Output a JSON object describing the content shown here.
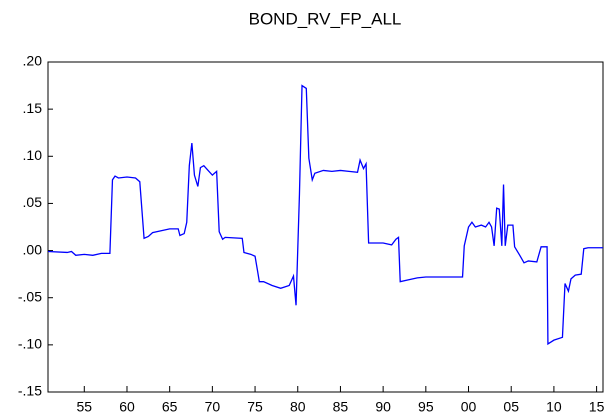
{
  "chart_data": {
    "type": "line",
    "title": "BOND_RV_FP_ALL",
    "x": [
      1950.75,
      1953,
      1953.5,
      1954,
      1955,
      1956,
      1957,
      1958,
      1958.3,
      1958.6,
      1959,
      1960,
      1961,
      1961.5,
      1962,
      1962.5,
      1963,
      1964,
      1965,
      1966,
      1966.2,
      1966.7,
      1967,
      1967.3,
      1967.6,
      1967.9,
      1968.3,
      1968.6,
      1969,
      1969.5,
      1970,
      1970.5,
      1970.8,
      1971.2,
      1971.5,
      1973.5,
      1973.7,
      1974.5,
      1975,
      1975.3,
      1975.5,
      1976,
      1977,
      1978,
      1979,
      1979.5,
      1979.8,
      1980.2,
      1980.5,
      1981,
      1981.3,
      1981.7,
      1982,
      1983,
      1984,
      1985,
      1986,
      1987,
      1987.3,
      1987.7,
      1988,
      1988.3,
      1989,
      1990,
      1991,
      1991.5,
      1991.8,
      1992,
      1993,
      1994,
      1995,
      1997,
      1998,
      1999.3,
      1999.5,
      2000,
      2000.4,
      2000.8,
      2001.5,
      2002,
      2002.4,
      2002.7,
      2003,
      2003.3,
      2003.6,
      2003.9,
      2004.1,
      2004.3,
      2004.6,
      2005.2,
      2005.4,
      2006,
      2006.5,
      2007,
      2008,
      2008.5,
      2009.2,
      2009.3,
      2010,
      2011,
      2011.3,
      2011.7,
      2012,
      2012.5,
      2013.2,
      2013.5,
      2014,
      2015.75
    ],
    "series": [
      {
        "name": "BOND_RV_FP_ALL",
        "color": "#0000ff",
        "values": [
          -0.001,
          -0.002,
          -0.001,
          -0.005,
          -0.004,
          -0.005,
          -0.003,
          -0.003,
          0.075,
          0.079,
          0.077,
          0.078,
          0.077,
          0.073,
          0.013,
          0.015,
          0.019,
          0.021,
          0.023,
          0.023,
          0.016,
          0.018,
          0.03,
          0.09,
          0.114,
          0.08,
          0.068,
          0.088,
          0.09,
          0.085,
          0.08,
          0.084,
          0.02,
          0.012,
          0.014,
          0.013,
          -0.002,
          -0.004,
          -0.006,
          -0.022,
          -0.033,
          -0.033,
          -0.037,
          -0.04,
          -0.037,
          -0.027,
          -0.058,
          0.06,
          0.175,
          0.172,
          0.098,
          0.075,
          0.082,
          0.085,
          0.084,
          0.085,
          0.084,
          0.083,
          0.096,
          0.087,
          0.092,
          0.008,
          0.008,
          0.008,
          0.006,
          0.012,
          0.014,
          -0.033,
          -0.031,
          -0.029,
          -0.028,
          -0.028,
          -0.028,
          -0.028,
          0.005,
          0.025,
          0.03,
          0.025,
          0.027,
          0.025,
          0.03,
          0.025,
          0.005,
          0.045,
          0.044,
          0.005,
          0.07,
          0.005,
          0.027,
          0.027,
          0.004,
          -0.005,
          -0.013,
          -0.011,
          -0.012,
          0.004,
          0.004,
          -0.099,
          -0.095,
          -0.092,
          -0.035,
          -0.043,
          -0.03,
          -0.026,
          -0.025,
          0.002,
          0.003,
          0.003
        ]
      }
    ],
    "xlim": [
      1950.75,
      2015.75
    ],
    "xticks": [
      {
        "value": 1955,
        "label": "55"
      },
      {
        "value": 1960,
        "label": "60"
      },
      {
        "value": 1965,
        "label": "65"
      },
      {
        "value": 1970,
        "label": "70"
      },
      {
        "value": 1975,
        "label": "75"
      },
      {
        "value": 1980,
        "label": "80"
      },
      {
        "value": 1985,
        "label": "85"
      },
      {
        "value": 1990,
        "label": "90"
      },
      {
        "value": 1995,
        "label": "95"
      },
      {
        "value": 2000,
        "label": "00"
      },
      {
        "value": 2005,
        "label": "05"
      },
      {
        "value": 2010,
        "label": "10"
      },
      {
        "value": 2015,
        "label": "15"
      }
    ],
    "ylim": [
      -0.15,
      0.2
    ],
    "yticks": [
      {
        "value": -0.15,
        "label": "-.15"
      },
      {
        "value": -0.1,
        "label": "-.10"
      },
      {
        "value": -0.05,
        "label": "-.05"
      },
      {
        "value": 0,
        "label": ".00"
      },
      {
        "value": 0.05,
        "label": ".05"
      },
      {
        "value": 0.1,
        "label": ".10"
      },
      {
        "value": 0.15,
        "label": ".15"
      },
      {
        "value": 0.2,
        "label": ".20"
      }
    ]
  }
}
